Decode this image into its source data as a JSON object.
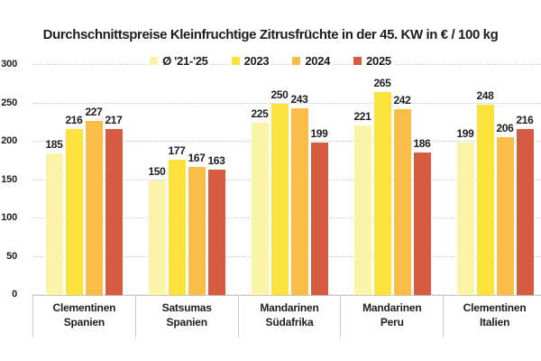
{
  "title": "Durchschnittspreise Kleinfruchtige Zitrusfrüchte in der 45. KW in € / 100 kg",
  "colors": {
    "background": "#ffffff",
    "text": "#1d1d1b",
    "grid": "#cccccc",
    "axis_border": "#cccccc"
  },
  "chart_data": {
    "type": "bar",
    "title": "Durchschnittspreise Kleinfruchtige Zitrusfrüchte in der 45. KW in € / 100 kg",
    "categories": [
      [
        "Clementinen",
        "Spanien"
      ],
      [
        "Satsumas",
        "Spanien"
      ],
      [
        "Mandarinen",
        "Südafrika"
      ],
      [
        "Mandarinen",
        "Peru"
      ],
      [
        "Clementinen",
        "Italien"
      ]
    ],
    "series": [
      {
        "name": "Ø '21-'25",
        "color": "#FBF4A8",
        "values": [
          185,
          150,
          225,
          221,
          199
        ]
      },
      {
        "name": "2023",
        "color": "#FDE23B",
        "values": [
          216,
          177,
          250,
          265,
          248
        ]
      },
      {
        "name": "2024",
        "color": "#FABD48",
        "values": [
          227,
          167,
          243,
          242,
          206
        ]
      },
      {
        "name": "2025",
        "color": "#D65C41",
        "values": [
          217,
          163,
          199,
          186,
          216
        ]
      }
    ],
    "ylim": [
      0,
      300
    ],
    "yticks": [
      0,
      50,
      100,
      150,
      200,
      250,
      300
    ],
    "xlabel": "",
    "ylabel": "",
    "grid": "horizontal-dotted",
    "legend_position": "top-center",
    "value_labels": true
  }
}
